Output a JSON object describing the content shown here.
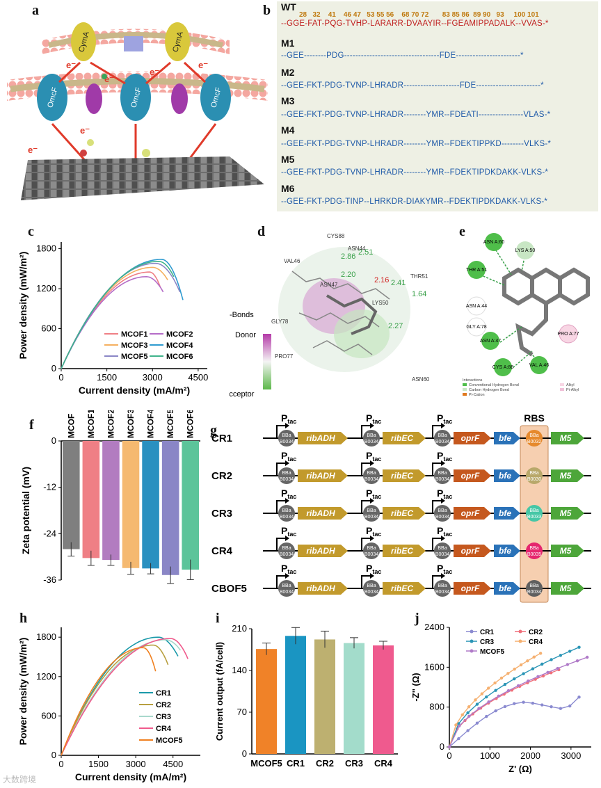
{
  "letters": {
    "a": "a",
    "b": "b",
    "c": "c",
    "d": "d",
    "e": "e",
    "f": "f",
    "g": "g",
    "h": "h",
    "i": "i",
    "j": "j"
  },
  "panel_a": {
    "electron": "e⁻",
    "labels": [
      "CymA",
      "CymA",
      "OmcF",
      "OmcF",
      "OmcF"
    ]
  },
  "panel_b": {
    "numbers": "28   32    41    46 47   53 55 56    68 70 72       83 85 86  89 90   93     100 101",
    "rows": [
      {
        "label": "WT",
        "seq": "--GGE-FAT-PQG-TVHP-LARARR-DVAAYIR--FGEAMIPPADALK--VVAS-*"
      },
      {
        "label": "M1",
        "seq": "--GEE--------PDG----------------------------------FDE-----------------------*"
      },
      {
        "label": "M2",
        "seq": "--GEE-FKT-PDG-TVNP-LHRADR--------------------FDE-----------------------*"
      },
      {
        "label": "M3",
        "seq": "--GEE-FKT-PDG-TVNP-LHRADR--------YMR--FDEATI----------------VLAS-*"
      },
      {
        "label": "M4",
        "seq": "--GEE-FKT-PDG-TVNP-LHRADR--------YMR--FDEKTIPPKD--------VLKS-*"
      },
      {
        "label": "M5",
        "seq": "--GEE-FKT-PDG-TVNP-LHRADR--------YMR--FDEKTIPDKDAKK-VLKS-*"
      },
      {
        "label": "M6",
        "seq": "--GEE-FKT-PDG-TINP--LHRKDR-DIAKYMR--FDEKTIPDKDAKK-VLKS-*"
      }
    ]
  },
  "chart_data": [
    {
      "id": "c",
      "type": "line",
      "xlabel": "Current density (mA/m²)",
      "ylabel": "Power density (mW/m²)",
      "xlim": [
        0,
        4800
      ],
      "ylim": [
        0,
        1900
      ],
      "xticks": [
        "0",
        "1500",
        "3000",
        "4500"
      ],
      "yticks": [
        "0",
        "600",
        "1200",
        "1800"
      ],
      "series": [
        {
          "name": "MCOF1",
          "color": "#ef7f85",
          "peak_x": 2900,
          "peak_y": 1450,
          "end_x": 3250,
          "end_y": 1230
        },
        {
          "name": "MCOF2",
          "color": "#b46cc7",
          "peak_x": 2800,
          "peak_y": 1380,
          "end_x": 3350,
          "end_y": 1150
        },
        {
          "name": "MCOF3",
          "color": "#f5b060",
          "peak_x": 3000,
          "peak_y": 1520,
          "end_x": 3500,
          "end_y": 1330
        },
        {
          "name": "MCOF4",
          "color": "#2f9bd0",
          "peak_x": 3300,
          "peak_y": 1640,
          "end_x": 4000,
          "end_y": 1030
        },
        {
          "name": "MCOF5",
          "color": "#8a86c6",
          "peak_x": 3100,
          "peak_y": 1580,
          "end_x": 3900,
          "end_y": 1150
        },
        {
          "name": "MCOF6",
          "color": "#3fb38b",
          "peak_x": 3200,
          "peak_y": 1610,
          "end_x": 3700,
          "end_y": 1380
        }
      ]
    },
    {
      "id": "f",
      "type": "bar",
      "ylabel": "Zeta potential (mV)",
      "ylim": [
        -36,
        0
      ],
      "yticks": [
        "0",
        "-12",
        "-24",
        "-36"
      ],
      "categories": [
        "MCOF",
        "MCOF1",
        "MCOF2",
        "MCOF3",
        "MCOF4",
        "MCOF5",
        "MCOF6"
      ],
      "values": [
        -28.0,
        -30.3,
        -30.8,
        -32.9,
        -33.0,
        -34.7,
        -33.3
      ],
      "errors": [
        1.8,
        1.9,
        1.4,
        1.6,
        1.4,
        2.2,
        2.6
      ],
      "colors": [
        "#7f7f7f",
        "#ef7f85",
        "#b27cc0",
        "#f5b970",
        "#2a90c0",
        "#8a86c6",
        "#5cc49a"
      ]
    },
    {
      "id": "h",
      "type": "line",
      "xlabel": "Current density (mA/m²)",
      "ylabel": "Power density (mW/m²)",
      "xlim": [
        0,
        5600
      ],
      "ylim": [
        0,
        1950
      ],
      "xticks": [
        "0",
        "1500",
        "3000",
        "4500"
      ],
      "yticks": [
        "0",
        "600",
        "1200",
        "1800"
      ],
      "series": [
        {
          "name": "CR1",
          "color": "#1a9aaa",
          "peak_x": 3900,
          "peak_y": 1800,
          "end_x": 4700,
          "end_y": 1510
        },
        {
          "name": "CR2",
          "color": "#b8a040",
          "peak_x": 3700,
          "peak_y": 1680,
          "end_x": 4300,
          "end_y": 1380
        },
        {
          "name": "CR3",
          "color": "#a8d8cc",
          "peak_x": 4200,
          "peak_y": 1760,
          "end_x": 4800,
          "end_y": 1600
        },
        {
          "name": "CR4",
          "color": "#f05a8c",
          "peak_x": 4400,
          "peak_y": 1780,
          "end_x": 5100,
          "end_y": 1470
        },
        {
          "name": "MCOF5",
          "color": "#f08020",
          "peak_x": 3300,
          "peak_y": 1640,
          "end_x": 3800,
          "end_y": 1280
        }
      ]
    },
    {
      "id": "i",
      "type": "bar",
      "ylabel": "Current output (fA/cell)",
      "ylim": [
        0,
        210
      ],
      "yticks": [
        "0",
        "70",
        "140",
        "210"
      ],
      "categories": [
        "MCOF5",
        "CR1",
        "CR2",
        "CR3",
        "CR4"
      ],
      "values": [
        176,
        198,
        192,
        186,
        182
      ],
      "errors": [
        10,
        14,
        14,
        9,
        7
      ],
      "colors": [
        "#f08228",
        "#1a95c2",
        "#bdb070",
        "#a3dccb",
        "#ef5a8e"
      ]
    },
    {
      "id": "j",
      "type": "scatter",
      "xlabel": "Z' (Ω)",
      "ylabel": "-Z'' (Ω)",
      "xlim": [
        0,
        3500
      ],
      "ylim": [
        0,
        2400
      ],
      "xticks": [
        "0",
        "1000",
        "2000",
        "3000"
      ],
      "yticks": [
        "0",
        "800",
        "1600",
        "2400"
      ],
      "series": [
        {
          "name": "CR1",
          "color": "#8a8ad0",
          "end_x": 3200,
          "end_y": 1000
        },
        {
          "name": "CR2",
          "color": "#ef6f7a",
          "end_x": 2700,
          "end_y": 1550
        },
        {
          "name": "CR3",
          "color": "#2a95b6",
          "end_x": 3200,
          "end_y": 2000
        },
        {
          "name": "CR4",
          "color": "#f5b070",
          "end_x": 2250,
          "end_y": 1880
        },
        {
          "name": "MCOF5",
          "color": "#b07ac8",
          "end_x": 3400,
          "end_y": 1800
        }
      ]
    }
  ],
  "panel_d": {
    "hbonds": "H-Bonds",
    "donor": "Donor",
    "acceptor": "Acceptor",
    "residues": [
      "CYS88",
      "ASN44",
      "VAL46",
      "ASN47",
      "THR51",
      "LYS50",
      "GLY78",
      "PRO77",
      "ASN60"
    ],
    "distances": [
      "2.86",
      "2.51",
      "2.20",
      "2.16",
      "2.41",
      "1.64",
      "2.27"
    ]
  },
  "panel_e": {
    "residues": [
      "ASN A:60",
      "LYS A:50",
      "THR A:51",
      "ASN A:44",
      "GLY A:78",
      "ASN A:47",
      "CYS A:88",
      "VAL A:46",
      "PRO A:77"
    ],
    "legend_title": "Interactions",
    "legend": [
      "Conventional Hydrogen Bond",
      "Carbon Hydrogen Bond",
      "Pi-Cation",
      "Alkyl",
      "Pi-Alkyl"
    ]
  },
  "panel_g": {
    "ptac": "P",
    "ptac_sub": "tac",
    "rbs": "RBS",
    "bba": "BBa",
    "genes": [
      "ribADH",
      "ribEC",
      "oprF",
      "bfe",
      "M5"
    ],
    "rows": [
      {
        "label": "CR1",
        "rbs_part": "B0032",
        "rbs_color": "#e6892c"
      },
      {
        "label": "CR2",
        "rbs_part": "B0030",
        "rbs_color": "#b8a86a"
      },
      {
        "label": "CR3",
        "rbs_part": "B0033",
        "rbs_color": "#46c7a6"
      },
      {
        "label": "CR4",
        "rbs_part": "B0035",
        "rbs_color": "#e5266e"
      },
      {
        "label": "CBOF5",
        "rbs_part": "B0034",
        "rbs_color": "#5f5f5f"
      }
    ],
    "default_part": "B0034"
  },
  "watermark": "大数跨境"
}
